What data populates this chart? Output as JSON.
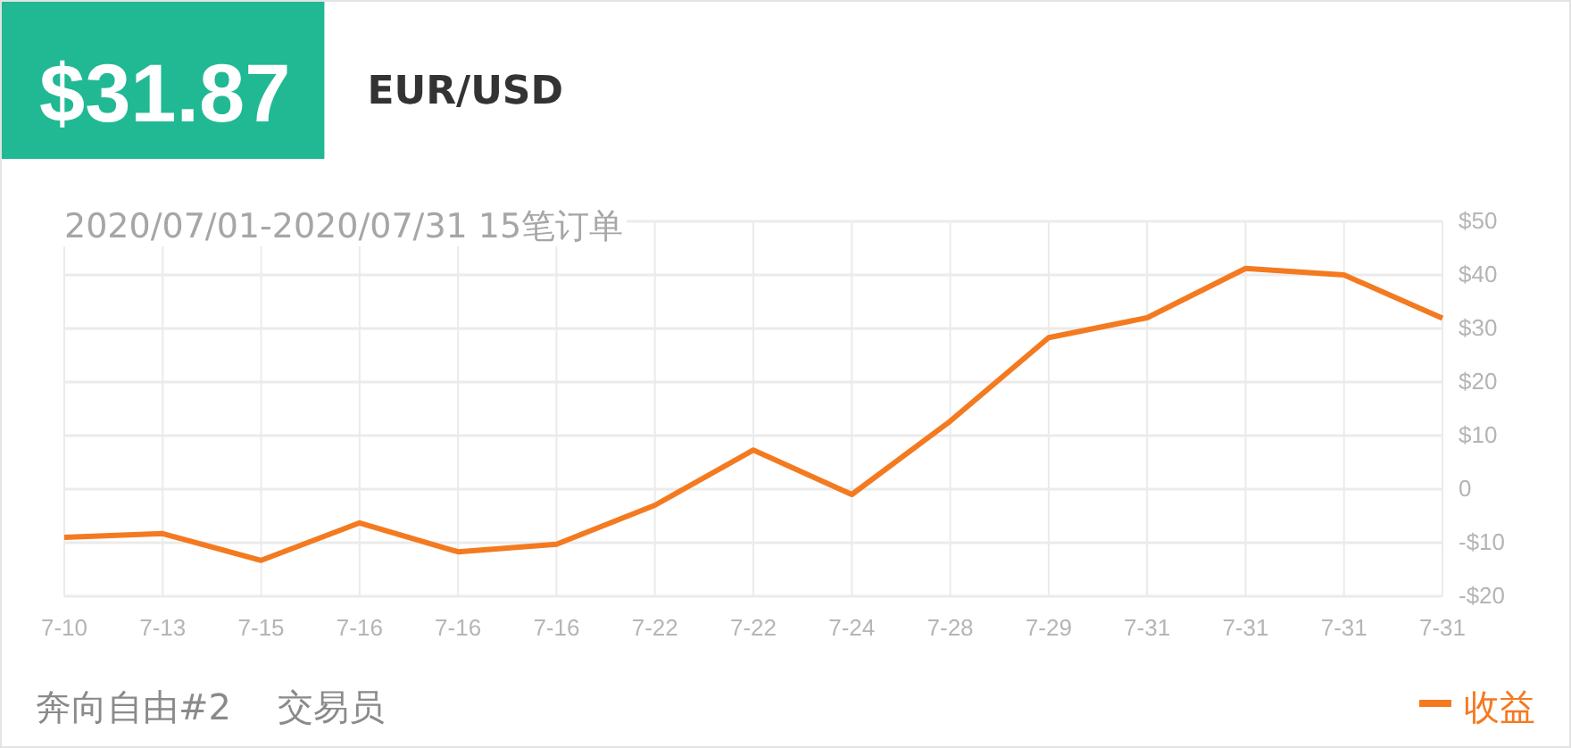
{
  "chart_data": {
    "type": "line",
    "title": "$31.87",
    "subtitle": "EUR/USD",
    "annotations": [
      "2020/07/01-2020/07/31 15笔订单",
      "奔向自由#2",
      "交易员"
    ],
    "categories": [
      "7-10",
      "7-13",
      "7-15",
      "7-16",
      "7-16",
      "7-16",
      "7-22",
      "7-22",
      "7-24",
      "7-28",
      "7-29",
      "7-31",
      "7-31",
      "7-31",
      "7-31"
    ],
    "series": [
      {
        "name": "收益",
        "color": "#f47a20",
        "values": [
          -9,
          -8.3,
          -13.3,
          -6.3,
          -11.7,
          -10.3,
          -3,
          7.3,
          -1,
          12.7,
          28.3,
          32,
          41.2,
          40,
          31.9
        ]
      }
    ],
    "ylim": [
      -20,
      50
    ],
    "yticks": [
      {
        "value": -20,
        "label": "-$20"
      },
      {
        "value": -10,
        "label": "-$10"
      },
      0,
      {
        "value": 10,
        "label": "$10"
      },
      {
        "value": 20,
        "label": "$20"
      },
      {
        "value": 30,
        "label": "$30"
      },
      {
        "value": 40,
        "label": "$40"
      },
      {
        "value": 50,
        "label": "$50"
      }
    ],
    "grid": true,
    "legend": "bottom right",
    "marker": "none",
    "line_style": "solid"
  }
}
